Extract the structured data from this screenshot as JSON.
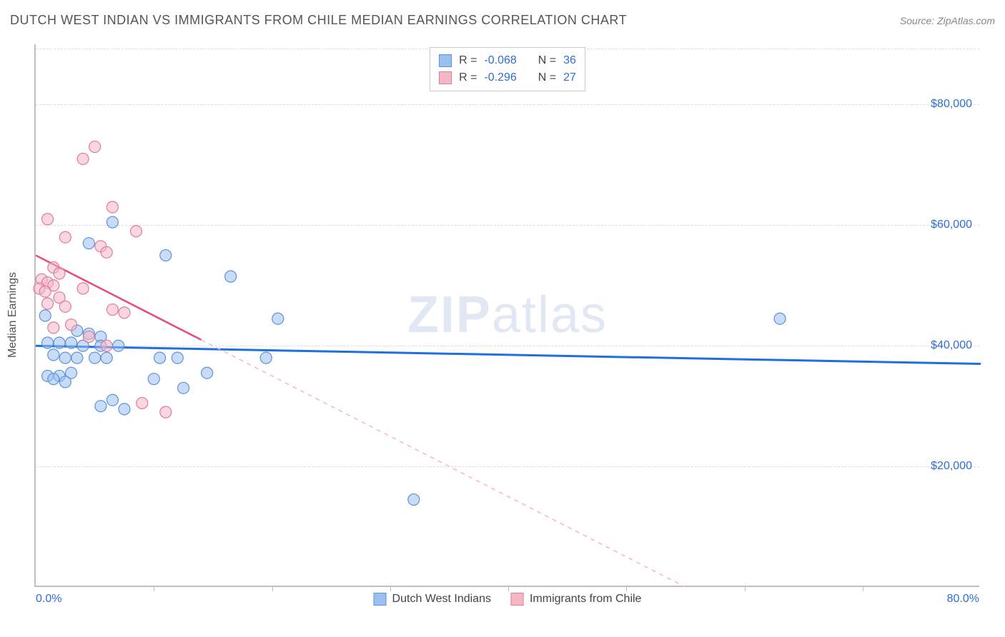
{
  "header": {
    "title": "DUTCH WEST INDIAN VS IMMIGRANTS FROM CHILE MEDIAN EARNINGS CORRELATION CHART",
    "source": "Source: ZipAtlas.com"
  },
  "watermark": {
    "zip": "ZIP",
    "rest": "atlas"
  },
  "chart": {
    "type": "scatter",
    "background_color": "#ffffff",
    "grid_color": "#dcdcdc",
    "axis_color": "#bfbfbf",
    "ylabel": "Median Earnings",
    "ylabel_fontsize": 16,
    "ylabel_color": "#555555",
    "xlim": [
      0,
      80
    ],
    "ylim": [
      0,
      90000
    ],
    "x_axis_label_min": "0.0%",
    "x_axis_label_max": "80.0%",
    "x_axis_label_color": "#2e6ed6",
    "x_axis_label_fontsize": 16,
    "xtick_positions": [
      10,
      20,
      30,
      40,
      50,
      60,
      70
    ],
    "yticks": [
      {
        "value": 20000,
        "label": "$20,000"
      },
      {
        "value": 40000,
        "label": "$40,000"
      },
      {
        "value": 60000,
        "label": "$60,000"
      },
      {
        "value": 80000,
        "label": "$80,000"
      }
    ],
    "ytick_color": "#2e6ed6",
    "ytick_fontsize": 16,
    "marker_radius": 8,
    "marker_opacity": 0.55,
    "marker_stroke_width": 1.2,
    "series": [
      {
        "key": "dutch_west_indians",
        "label": "Dutch West Indians",
        "fill_color": "#9bc0f0",
        "stroke_color": "#5d93d6",
        "trend": {
          "solid_color": "#1f6fe0",
          "solid_width": 3,
          "p1": {
            "x": 0,
            "y": 40000
          },
          "p2": {
            "x": 80,
            "y": 37000
          }
        },
        "points": [
          {
            "x": 6.5,
            "y": 60500
          },
          {
            "x": 4.5,
            "y": 57000
          },
          {
            "x": 11.0,
            "y": 55000
          },
          {
            "x": 16.5,
            "y": 51500
          },
          {
            "x": 20.5,
            "y": 44500
          },
          {
            "x": 63.0,
            "y": 44500
          },
          {
            "x": 0.8,
            "y": 45000
          },
          {
            "x": 3.5,
            "y": 42500
          },
          {
            "x": 4.5,
            "y": 42000
          },
          {
            "x": 5.5,
            "y": 41500
          },
          {
            "x": 1.0,
            "y": 40500
          },
          {
            "x": 2.0,
            "y": 40500
          },
          {
            "x": 3.0,
            "y": 40500
          },
          {
            "x": 4.0,
            "y": 40000
          },
          {
            "x": 5.5,
            "y": 40000
          },
          {
            "x": 7.0,
            "y": 40000
          },
          {
            "x": 1.5,
            "y": 38500
          },
          {
            "x": 2.5,
            "y": 38000
          },
          {
            "x": 3.5,
            "y": 38000
          },
          {
            "x": 5.0,
            "y": 38000
          },
          {
            "x": 6.0,
            "y": 38000
          },
          {
            "x": 10.5,
            "y": 38000
          },
          {
            "x": 12.0,
            "y": 38000
          },
          {
            "x": 19.5,
            "y": 38000
          },
          {
            "x": 1.0,
            "y": 35000
          },
          {
            "x": 2.0,
            "y": 35000
          },
          {
            "x": 3.0,
            "y": 35500
          },
          {
            "x": 1.5,
            "y": 34500
          },
          {
            "x": 2.5,
            "y": 34000
          },
          {
            "x": 10.0,
            "y": 34500
          },
          {
            "x": 12.5,
            "y": 33000
          },
          {
            "x": 14.5,
            "y": 35500
          },
          {
            "x": 5.5,
            "y": 30000
          },
          {
            "x": 6.5,
            "y": 31000
          },
          {
            "x": 7.5,
            "y": 29500
          },
          {
            "x": 32.0,
            "y": 14500
          }
        ]
      },
      {
        "key": "immigrants_from_chile",
        "label": "Immigrants from Chile",
        "fill_color": "#f4b7c6",
        "stroke_color": "#e07b98",
        "trend": {
          "solid_color": "#e94a7a",
          "solid_width": 2.5,
          "p1": {
            "x": 0,
            "y": 55000
          },
          "p2": {
            "x": 14,
            "y": 41000
          },
          "dashed_color": "#f4b7c6",
          "dash_pattern": "6,6",
          "dp1": {
            "x": 14,
            "y": 41000
          },
          "dp2": {
            "x": 55,
            "y": 0
          }
        },
        "points": [
          {
            "x": 5.0,
            "y": 73000
          },
          {
            "x": 4.0,
            "y": 71000
          },
          {
            "x": 6.5,
            "y": 63000
          },
          {
            "x": 1.0,
            "y": 61000
          },
          {
            "x": 8.5,
            "y": 59000
          },
          {
            "x": 2.5,
            "y": 58000
          },
          {
            "x": 5.5,
            "y": 56500
          },
          {
            "x": 6.0,
            "y": 55500
          },
          {
            "x": 1.5,
            "y": 53000
          },
          {
            "x": 2.0,
            "y": 52000
          },
          {
            "x": 0.5,
            "y": 51000
          },
          {
            "x": 1.0,
            "y": 50500
          },
          {
            "x": 1.5,
            "y": 50000
          },
          {
            "x": 0.3,
            "y": 49500
          },
          {
            "x": 0.8,
            "y": 49000
          },
          {
            "x": 4.0,
            "y": 49500
          },
          {
            "x": 2.0,
            "y": 48000
          },
          {
            "x": 1.0,
            "y": 47000
          },
          {
            "x": 2.5,
            "y": 46500
          },
          {
            "x": 6.5,
            "y": 46000
          },
          {
            "x": 7.5,
            "y": 45500
          },
          {
            "x": 1.5,
            "y": 43000
          },
          {
            "x": 3.0,
            "y": 43500
          },
          {
            "x": 4.5,
            "y": 41500
          },
          {
            "x": 6.0,
            "y": 40000
          },
          {
            "x": 9.0,
            "y": 30500
          },
          {
            "x": 11.0,
            "y": 29000
          }
        ]
      }
    ],
    "stats_box": {
      "border_color": "#c9c9c9",
      "bg_color": "#ffffff",
      "fontsize": 16,
      "text_color": "#444444",
      "value_color": "#2e6ed6",
      "rows": [
        {
          "series_key": "dutch_west_indians",
          "r_label": "R =",
          "r_value": "-0.068",
          "n_label": "N =",
          "n_value": "36"
        },
        {
          "series_key": "immigrants_from_chile",
          "r_label": "R =",
          "r_value": "-0.296",
          "n_label": "N =",
          "n_value": "27"
        }
      ]
    }
  }
}
